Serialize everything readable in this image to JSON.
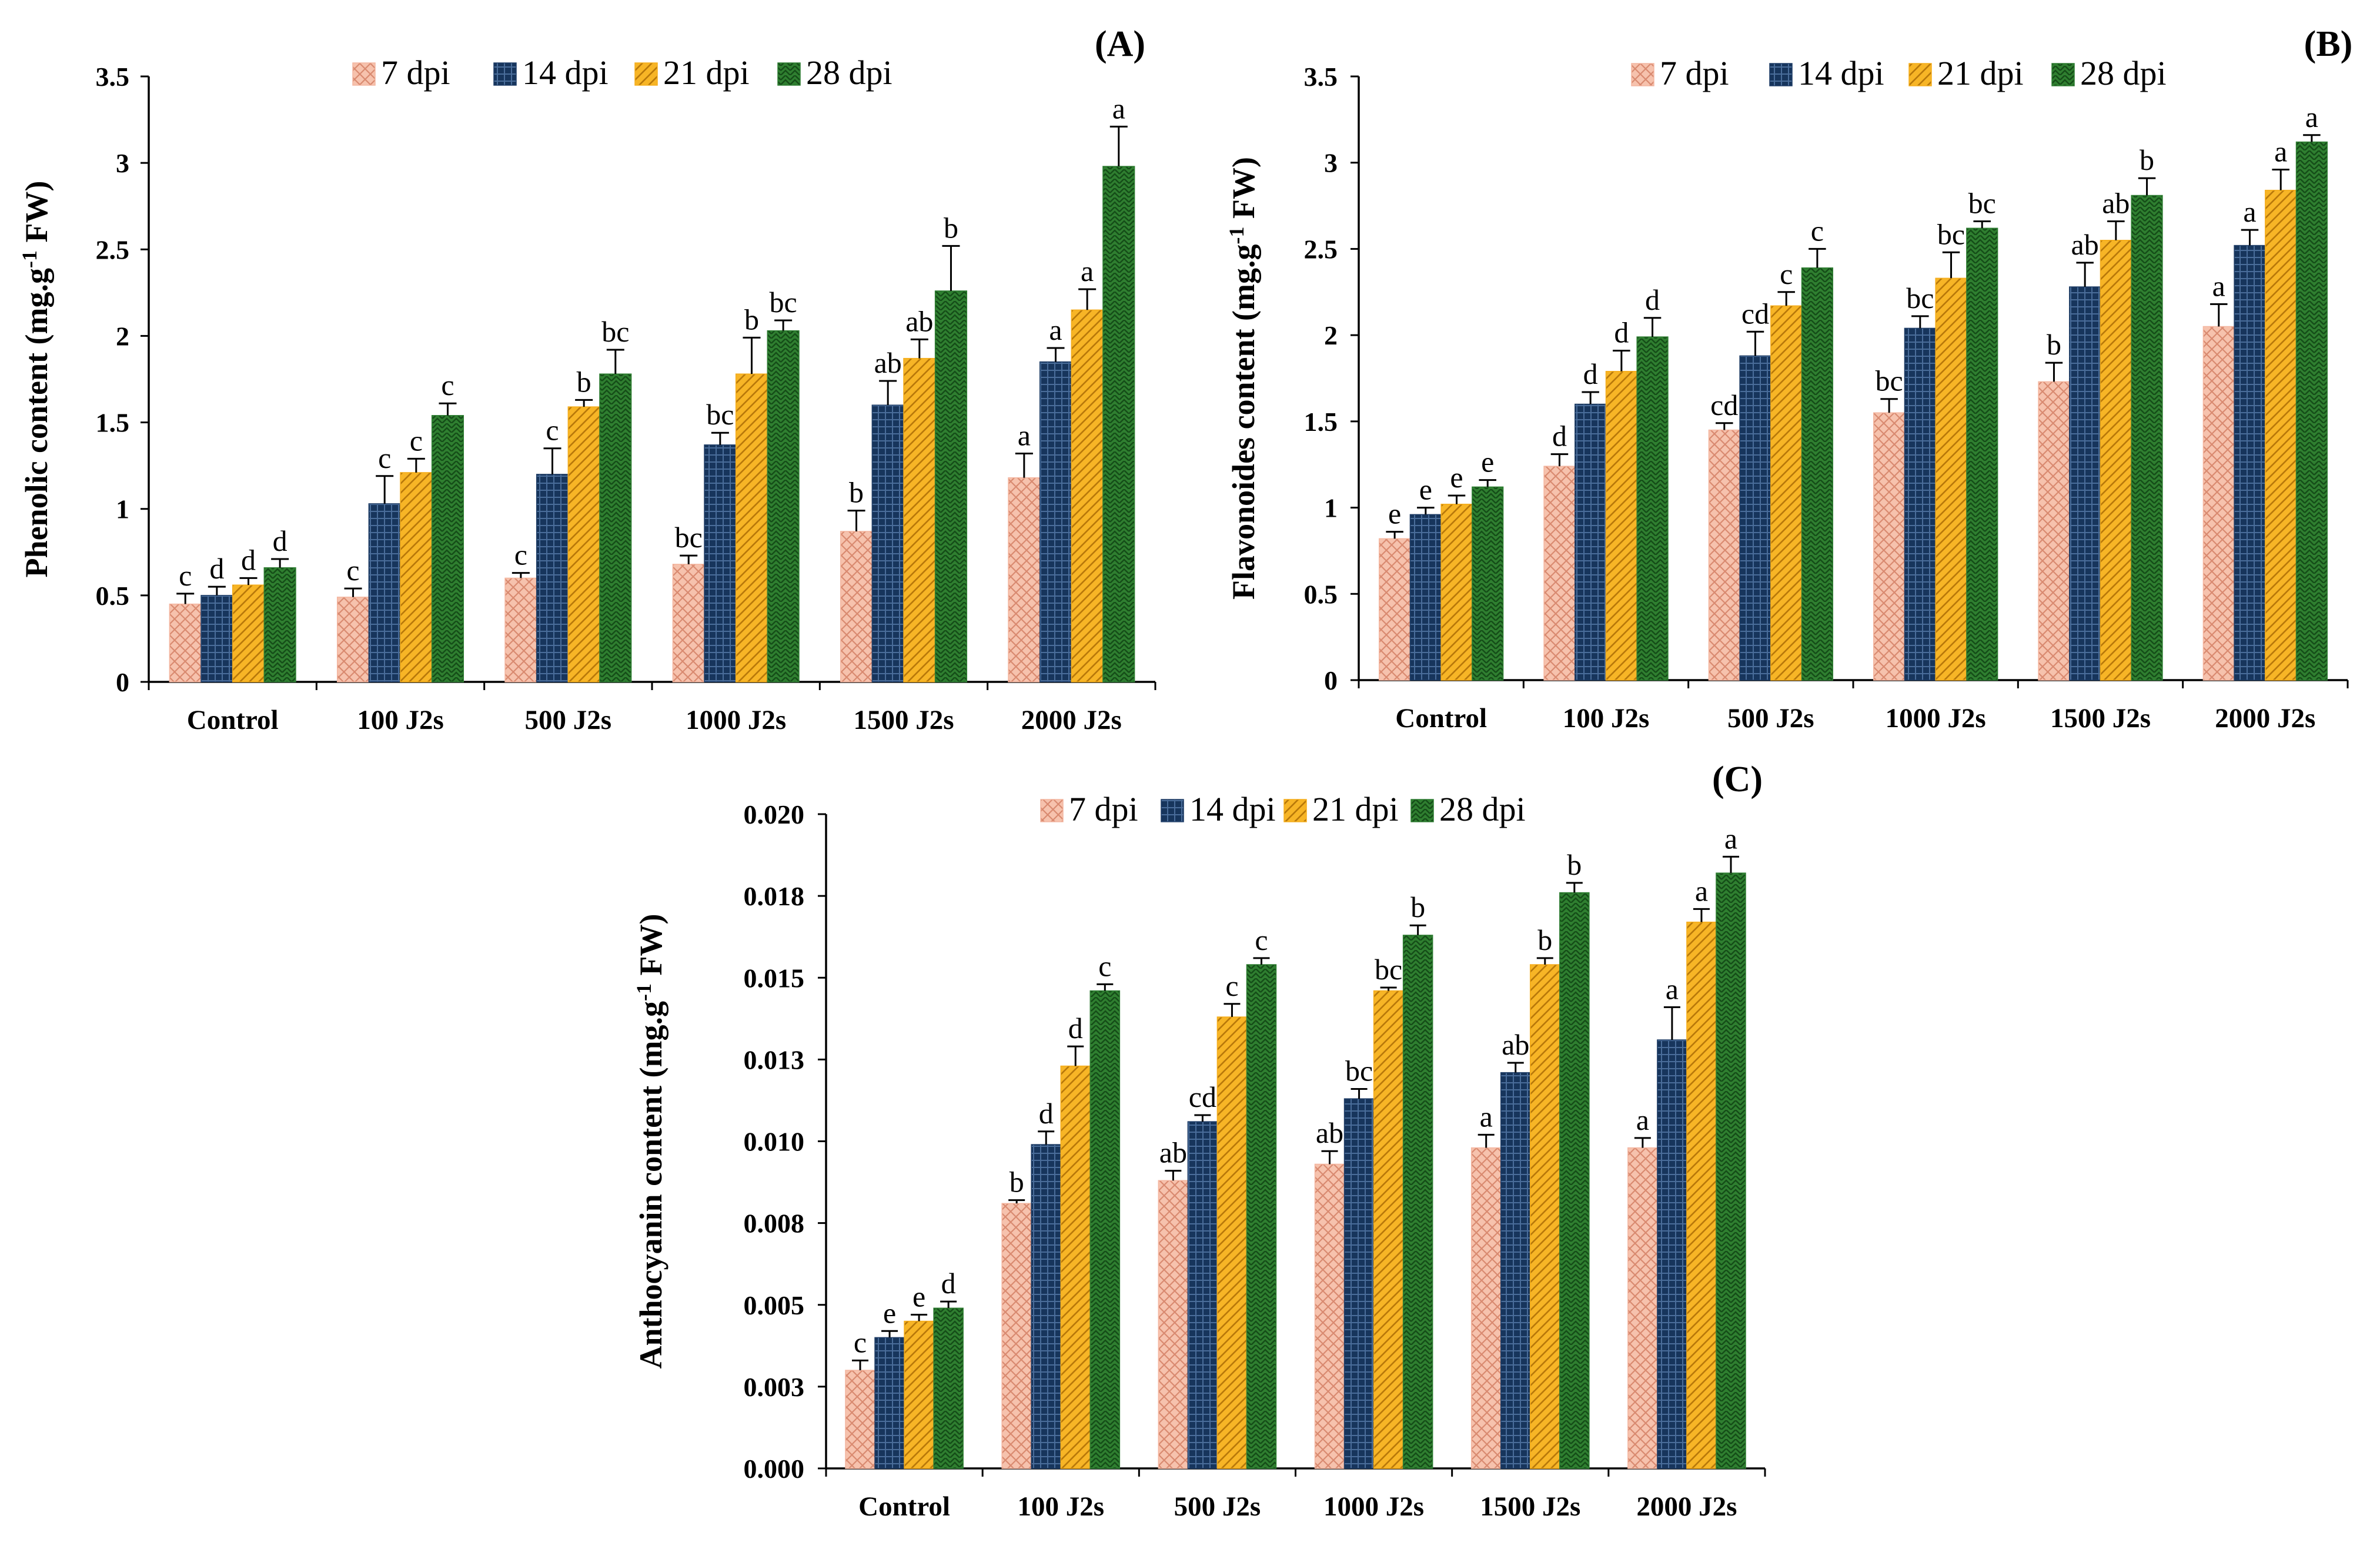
{
  "colors": {
    "7 dpi": "#f4b6a0",
    "14 dpi": "#1f3d66",
    "21 dpi": "#f5ad1c",
    "28 dpi": "#2e7d32",
    "axis": "#000000",
    "error_bar": "#000000"
  },
  "chart_data": [
    {
      "type": "bar",
      "panel": "(A)",
      "ylabel_main": "Phenolic content (mg.g",
      "ylabel_sup": "-1",
      "ylabel_end": " FW)",
      "xlabel": "",
      "ylim": [
        0,
        3.5
      ],
      "yticks": [
        "0",
        "0.5",
        "1",
        "1.5",
        "2",
        "2.5",
        "3",
        "3.5"
      ],
      "categories": [
        "Control",
        "100 J2s",
        "500 J2s",
        "1000 J2s",
        "1500 J2s",
        "2000 J2s"
      ],
      "legend": [
        "7 dpi",
        "14 dpi",
        "21 dpi",
        "28 dpi"
      ],
      "series": [
        {
          "name": "7 dpi",
          "values": [
            0.45,
            0.49,
            0.6,
            0.68,
            0.87,
            1.18
          ],
          "errors": [
            0.06,
            0.05,
            0.03,
            0.05,
            0.12,
            0.14
          ],
          "letters": [
            "c",
            "c",
            "c",
            "bc",
            "b",
            "a"
          ]
        },
        {
          "name": "14 dpi",
          "values": [
            0.5,
            1.03,
            1.2,
            1.37,
            1.6,
            1.85
          ],
          "errors": [
            0.05,
            0.16,
            0.15,
            0.07,
            0.14,
            0.08
          ],
          "letters": [
            "d",
            "c",
            "c",
            "bc",
            "ab",
            "a"
          ]
        },
        {
          "name": "21 dpi",
          "values": [
            0.56,
            1.21,
            1.59,
            1.78,
            1.87,
            2.15
          ],
          "errors": [
            0.04,
            0.08,
            0.04,
            0.21,
            0.11,
            0.12
          ],
          "letters": [
            "d",
            "c",
            "b",
            "b",
            "ab",
            "a"
          ]
        },
        {
          "name": "28 dpi",
          "values": [
            0.66,
            1.54,
            1.78,
            2.03,
            2.26,
            2.98
          ],
          "errors": [
            0.05,
            0.07,
            0.14,
            0.06,
            0.26,
            0.23
          ],
          "letters": [
            "d",
            "c",
            "bc",
            "bc",
            "b",
            "a"
          ]
        }
      ]
    },
    {
      "type": "bar",
      "panel": "(B)",
      "ylabel_main": "Flavonoides content (mg.g",
      "ylabel_sup": "-1",
      "ylabel_end": " FW)",
      "xlabel": "",
      "ylim": [
        0,
        3.5
      ],
      "yticks": [
        "0",
        "0.5",
        "1",
        "1.5",
        "2",
        "2.5",
        "3",
        "3.5"
      ],
      "categories": [
        "Control",
        "100 J2s",
        "500 J2s",
        "1000 J2s",
        "1500 J2s",
        "2000 J2s"
      ],
      "legend": [
        "7 dpi",
        "14 dpi",
        "21 dpi",
        "28 dpi"
      ],
      "series": [
        {
          "name": "7 dpi",
          "values": [
            0.82,
            1.24,
            1.45,
            1.55,
            1.73,
            2.05
          ],
          "errors": [
            0.04,
            0.07,
            0.04,
            0.08,
            0.11,
            0.13
          ],
          "letters": [
            "e",
            "d",
            "cd",
            "bc",
            "b",
            "a"
          ]
        },
        {
          "name": "14 dpi",
          "values": [
            0.96,
            1.6,
            1.88,
            2.04,
            2.28,
            2.52
          ],
          "errors": [
            0.04,
            0.07,
            0.14,
            0.07,
            0.14,
            0.09
          ],
          "letters": [
            "e",
            "d",
            "cd",
            "bc",
            "ab",
            "a"
          ]
        },
        {
          "name": "21 dpi",
          "values": [
            1.02,
            1.79,
            2.17,
            2.33,
            2.55,
            2.84
          ],
          "errors": [
            0.05,
            0.12,
            0.08,
            0.15,
            0.11,
            0.12
          ],
          "letters": [
            "e",
            "d",
            "c",
            "bc",
            "ab",
            "a"
          ]
        },
        {
          "name": "28 dpi",
          "values": [
            1.12,
            1.99,
            2.39,
            2.62,
            2.81,
            3.12
          ],
          "errors": [
            0.04,
            0.11,
            0.11,
            0.04,
            0.1,
            0.04
          ],
          "letters": [
            "e",
            "d",
            "c",
            "bc",
            "b",
            "a"
          ]
        }
      ]
    },
    {
      "type": "bar",
      "panel": "(C)",
      "ylabel_main": "Anthocyanin content (mg.g",
      "ylabel_sup": "-1",
      "ylabel_end": " FW)",
      "xlabel": "",
      "ylim": [
        0,
        0.02
      ],
      "yticks": [
        "0.000",
        "0.003",
        "0.005",
        "0.008",
        "0.010",
        "0.013",
        "0.015",
        "0.018",
        "0.020"
      ],
      "categories": [
        "Control",
        "100 J2s",
        "500 J2s",
        "1000 J2s",
        "1500 J2s",
        "2000 J2s"
      ],
      "legend": [
        "7 dpi",
        "14 dpi",
        "21 dpi",
        "28 dpi"
      ],
      "series": [
        {
          "name": "7 dpi",
          "values": [
            0.003,
            0.0081,
            0.0088,
            0.0093,
            0.0098,
            0.0098
          ],
          "errors": [
            0.0003,
            0.0001,
            0.0003,
            0.0004,
            0.0004,
            0.0003
          ],
          "letters": [
            "c",
            "b",
            "ab",
            "ab",
            "a",
            "a"
          ]
        },
        {
          "name": "14 dpi",
          "values": [
            0.004,
            0.0099,
            0.0106,
            0.0113,
            0.0121,
            0.0131
          ],
          "errors": [
            0.0002,
            0.0004,
            0.0002,
            0.0003,
            0.0003,
            0.001
          ],
          "letters": [
            "e",
            "d",
            "cd",
            "bc",
            "ab",
            "a"
          ]
        },
        {
          "name": "21 dpi",
          "values": [
            0.0045,
            0.0123,
            0.0138,
            0.0146,
            0.0154,
            0.0167
          ],
          "errors": [
            0.0002,
            0.0006,
            0.0004,
            0.0001,
            0.0002,
            0.0004
          ],
          "letters": [
            "e",
            "d",
            "c",
            "bc",
            "b",
            "a"
          ]
        },
        {
          "name": "28 dpi",
          "values": [
            0.0049,
            0.0146,
            0.0154,
            0.0163,
            0.0176,
            0.0182
          ],
          "errors": [
            0.0002,
            0.0002,
            0.0002,
            0.0003,
            0.0003,
            0.0005
          ],
          "letters": [
            "d",
            "c",
            "c",
            "b",
            "b",
            "a"
          ]
        }
      ]
    }
  ]
}
